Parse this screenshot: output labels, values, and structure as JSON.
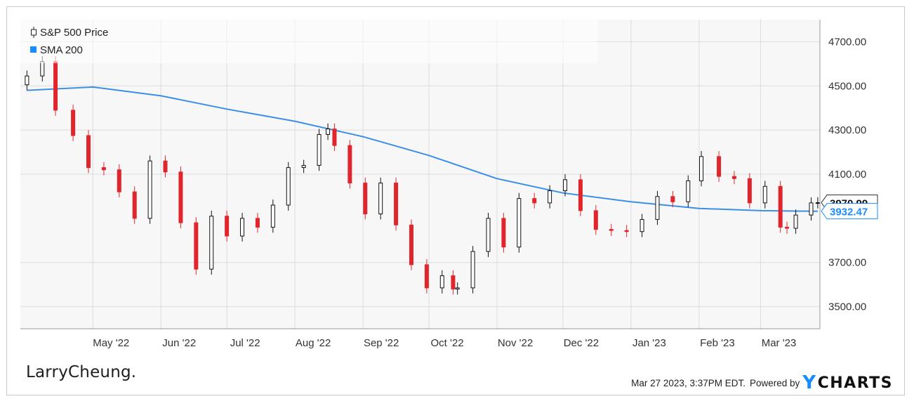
{
  "legend": {
    "price_label": "S&P 500 Price",
    "sma_label": "SMA 200"
  },
  "brand": "LarryCheung.",
  "footer": {
    "timestamp": "Mar 27 2023, 3:37PM EDT.",
    "powered_by": "Powered by",
    "ycharts_y": "Y",
    "ycharts_rest": "CHARTS"
  },
  "colors": {
    "up": "#111111",
    "down": "#e0262c",
    "sma": "#3b8fe6",
    "grid": "#dcdcdc",
    "plot_bg": "#f7f7f7"
  },
  "chart_data": {
    "type": "candlestick",
    "title": "",
    "xlabel": "",
    "ylabel": "",
    "ylim": [
      3400,
      4800
    ],
    "y_ticks": [
      "4700.00",
      "4500.00",
      "4300.00",
      "4100.00",
      "3700.00",
      "3500.00"
    ],
    "x_ticks": [
      "May '22",
      "Jun '22",
      "Jul '22",
      "Aug '22",
      "Sep '22",
      "Oct '22",
      "Nov '22",
      "Dec '22",
      "Jan '23",
      "Feb '23",
      "Mar '23"
    ],
    "last_price_label": "3970.99",
    "sma_label_value": "3932.47",
    "series": [
      {
        "name": "S&P 500 Price",
        "kind": "price",
        "x": [
          "2022-04-01",
          "2022-04-08",
          "2022-04-14",
          "2022-04-22",
          "2022-04-29",
          "2022-05-06",
          "2022-05-13",
          "2022-05-20",
          "2022-05-27",
          "2022-06-03",
          "2022-06-10",
          "2022-06-17",
          "2022-06-24",
          "2022-07-01",
          "2022-07-08",
          "2022-07-15",
          "2022-07-22",
          "2022-07-29",
          "2022-08-05",
          "2022-08-12",
          "2022-08-16",
          "2022-08-19",
          "2022-08-26",
          "2022-09-02",
          "2022-09-09",
          "2022-09-16",
          "2022-09-23",
          "2022-09-30",
          "2022-10-07",
          "2022-10-12",
          "2022-10-14",
          "2022-10-21",
          "2022-10-28",
          "2022-11-04",
          "2022-11-11",
          "2022-11-18",
          "2022-11-25",
          "2022-12-02",
          "2022-12-09",
          "2022-12-16",
          "2022-12-23",
          "2022-12-30",
          "2023-01-06",
          "2023-01-13",
          "2023-01-20",
          "2023-01-27",
          "2023-02-02",
          "2023-02-10",
          "2023-02-17",
          "2023-02-24",
          "2023-03-03",
          "2023-03-10",
          "2023-03-13",
          "2023-03-17",
          "2023-03-24",
          "2023-03-27"
        ],
        "values": [
          4545,
          4610,
          4390,
          4275,
          4130,
          4120,
          4020,
          3900,
          4160,
          4110,
          3880,
          3670,
          3910,
          3820,
          3900,
          3860,
          3960,
          4130,
          4140,
          4280,
          4305,
          4230,
          4060,
          3920,
          4060,
          3870,
          3690,
          3585,
          3640,
          3580,
          3585,
          3750,
          3900,
          3770,
          3990,
          3970,
          4025,
          4075,
          3935,
          3850,
          3845,
          3840,
          3895,
          3999,
          3975,
          4070,
          4180,
          4090,
          4080,
          3970,
          4045,
          3860,
          3855,
          3915,
          3970,
          3971
        ]
      },
      {
        "name": "SMA 200",
        "kind": "sma",
        "x": [
          "2022-04-01",
          "2022-05-01",
          "2022-06-01",
          "2022-07-01",
          "2022-08-01",
          "2022-09-01",
          "2022-10-01",
          "2022-11-01",
          "2022-12-01",
          "2023-01-01",
          "2023-02-01",
          "2023-03-01",
          "2023-03-27"
        ],
        "values": [
          4480,
          4495,
          4455,
          4395,
          4340,
          4270,
          4185,
          4080,
          4015,
          3975,
          3945,
          3935,
          3932
        ]
      }
    ]
  }
}
